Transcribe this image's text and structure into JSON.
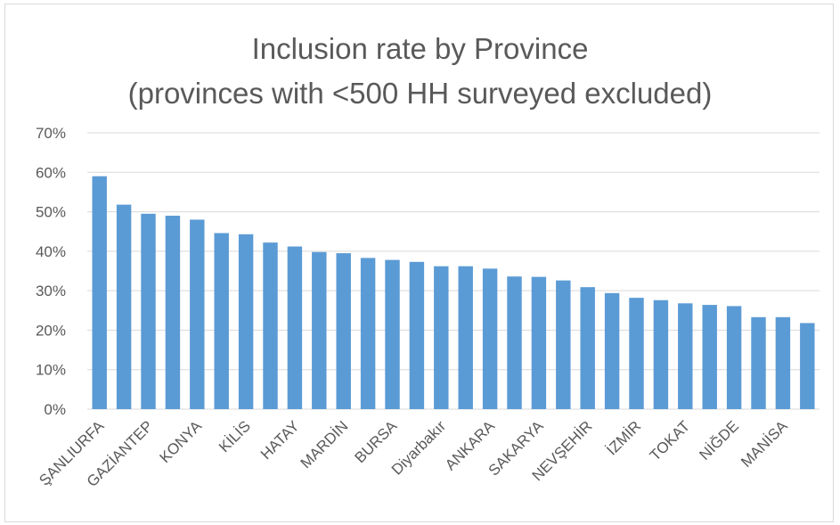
{
  "chart_data": {
    "type": "bar",
    "title_line1": "Inclusion rate by Province",
    "title_line2": "(provinces with <500 HH surveyed excluded)",
    "xlabel": "",
    "ylabel": "",
    "ylim": [
      0,
      0.7
    ],
    "y_ticks": [
      "0%",
      "10%",
      "20%",
      "30%",
      "40%",
      "50%",
      "60%",
      "70%"
    ],
    "y_tick_values": [
      0,
      0.1,
      0.2,
      0.3,
      0.4,
      0.5,
      0.6,
      0.7
    ],
    "grid": true,
    "bar_color": "#5b9bd5",
    "grid_color": "#d9d9d9",
    "text_color": "#595959",
    "categories": [
      "ŞANLIURFA",
      "",
      "GAZİANTEP",
      "",
      "KONYA",
      "",
      "KİLİS",
      "",
      "HATAY",
      "",
      "MARDİN",
      "",
      "BURSA",
      "",
      "Diyarbakır",
      "",
      "ANKARA",
      "",
      "SAKARYA",
      "",
      "NEVŞEHİR",
      "",
      "İZMİR",
      "",
      "TOKAT",
      "",
      "NİĞDE",
      "",
      "MANİSA",
      ""
    ],
    "values": [
      0.59,
      0.518,
      0.495,
      0.49,
      0.48,
      0.446,
      0.443,
      0.422,
      0.412,
      0.398,
      0.395,
      0.383,
      0.378,
      0.373,
      0.362,
      0.362,
      0.356,
      0.336,
      0.335,
      0.326,
      0.309,
      0.294,
      0.282,
      0.276,
      0.268,
      0.264,
      0.261,
      0.233,
      0.233,
      0.218
    ]
  }
}
